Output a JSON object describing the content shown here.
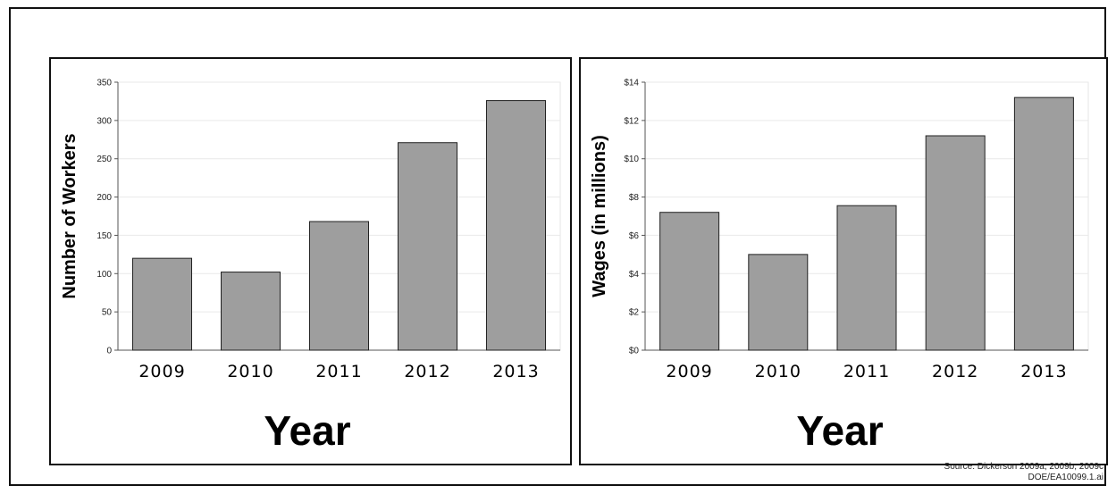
{
  "chart_data": [
    {
      "type": "bar",
      "categories": [
        "2009",
        "2010",
        "2011",
        "2012",
        "2013"
      ],
      "values": [
        120,
        102,
        168,
        271,
        326
      ],
      "xlabel": "Year",
      "ylabel": "Number of Workers",
      "ylim": [
        0,
        350
      ],
      "yticks": [
        "0",
        "50",
        "100",
        "150",
        "200",
        "250",
        "300",
        "350"
      ],
      "bar_color": "#9e9e9e"
    },
    {
      "type": "bar",
      "categories": [
        "2009",
        "2010",
        "2011",
        "2012",
        "2013"
      ],
      "values": [
        7.2,
        5.0,
        7.55,
        11.2,
        13.2
      ],
      "xlabel": "Year",
      "ylabel": "Wages (in millions)",
      "ylim": [
        0,
        14
      ],
      "yticks": [
        "$0",
        "$2",
        "$4",
        "$6",
        "$8",
        "$10",
        "$12",
        "$14"
      ],
      "bar_color": "#9e9e9e"
    }
  ],
  "source": {
    "line1": "Source:  Dickerson 2009a, 2009b, 2009c",
    "line2": "DOE/EA10099.1.ai"
  }
}
